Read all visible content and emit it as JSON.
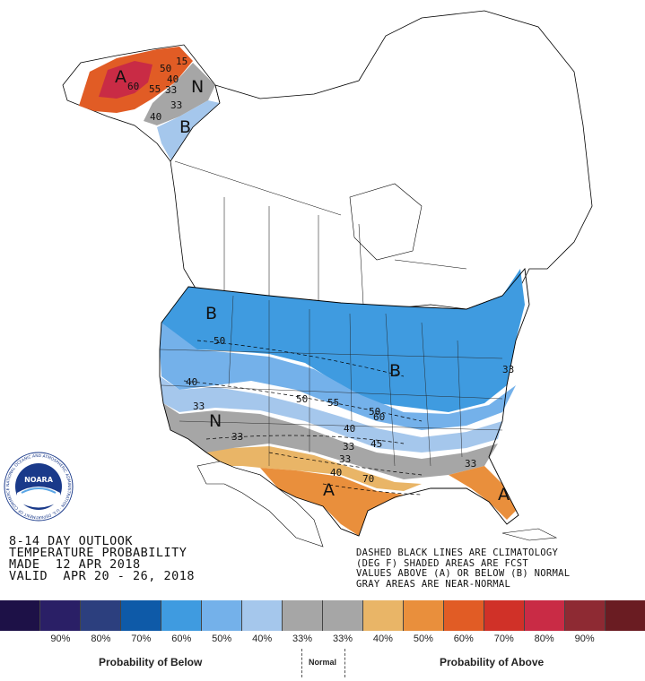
{
  "outlook": {
    "line1": "8-14 DAY OUTLOOK",
    "line2": "TEMPERATURE PROBABILITY",
    "line3": "MADE  12 APR 2018",
    "line4": "VALID  APR 20 - 26, 2018"
  },
  "notes": {
    "line1": "DASHED BLACK LINES ARE CLIMATOLOGY",
    "line2": "(DEG F) SHADED AREAS ARE FCST",
    "line3": "VALUES ABOVE (A) OR BELOW (B) NORMAL",
    "line4": "GRAY AREAS ARE NEAR-NORMAL"
  },
  "logo": {
    "text": "NOARA",
    "ring_text": "NATIONAL OCEANIC AND ATMOSPHERIC ADMINISTRATION · U.S. DEPARTMENT OF COMMERCE"
  },
  "legend": {
    "colors": [
      "#1d1147",
      "#2a1f66",
      "#2c3f7e",
      "#0e5aa8",
      "#3f9be0",
      "#74b1ea",
      "#a5c7ec",
      "#a6a6a6",
      "#a6a6a6",
      "#e9b567",
      "#e98f3c",
      "#e15c25",
      "#d03128",
      "#c92b45",
      "#8e2a33",
      "#6a1c22"
    ],
    "labels": [
      "90%",
      "80%",
      "70%",
      "60%",
      "50%",
      "40%",
      "33%",
      "33%",
      "40%",
      "50%",
      "60%",
      "70%",
      "80%",
      "90%"
    ],
    "below_title": "Probability of Below",
    "normal_title": "Normal",
    "above_title": "Probability of Above"
  },
  "map": {
    "colors": {
      "below_33": "#a5c7ec",
      "below_40": "#74b1ea",
      "below_50": "#3f9be0",
      "normal": "#a6a6a6",
      "above_33": "#e9b567",
      "above_40": "#e98f3c",
      "above_50": "#e15c25",
      "above_60": "#d03128",
      "above_70": "#c92b45"
    },
    "letters": {
      "alaska_a": "A",
      "alaska_n": "N",
      "alaska_b": "B",
      "west_b": "B",
      "central_b": "B",
      "sw_n": "N",
      "texas_a": "A",
      "florida_a": "A"
    },
    "contours": {
      "ak_15": "15",
      "ak_50": "50",
      "ak_40": "40",
      "ak_60": "60",
      "ak_55": "55",
      "ak_33a": "33",
      "ak_33b": "33",
      "ak_40b": "40",
      "nw_50": "50",
      "w_40": "40",
      "w_33": "33",
      "c_50": "50",
      "c_55": "55",
      "e_50": "50",
      "e_60": "60",
      "e_40": "40",
      "e_45": "45",
      "e_33": "33",
      "sw_33": "33",
      "tx_40": "40",
      "tx_70": "70",
      "fl_33": "33",
      "ne_33": "33"
    }
  }
}
